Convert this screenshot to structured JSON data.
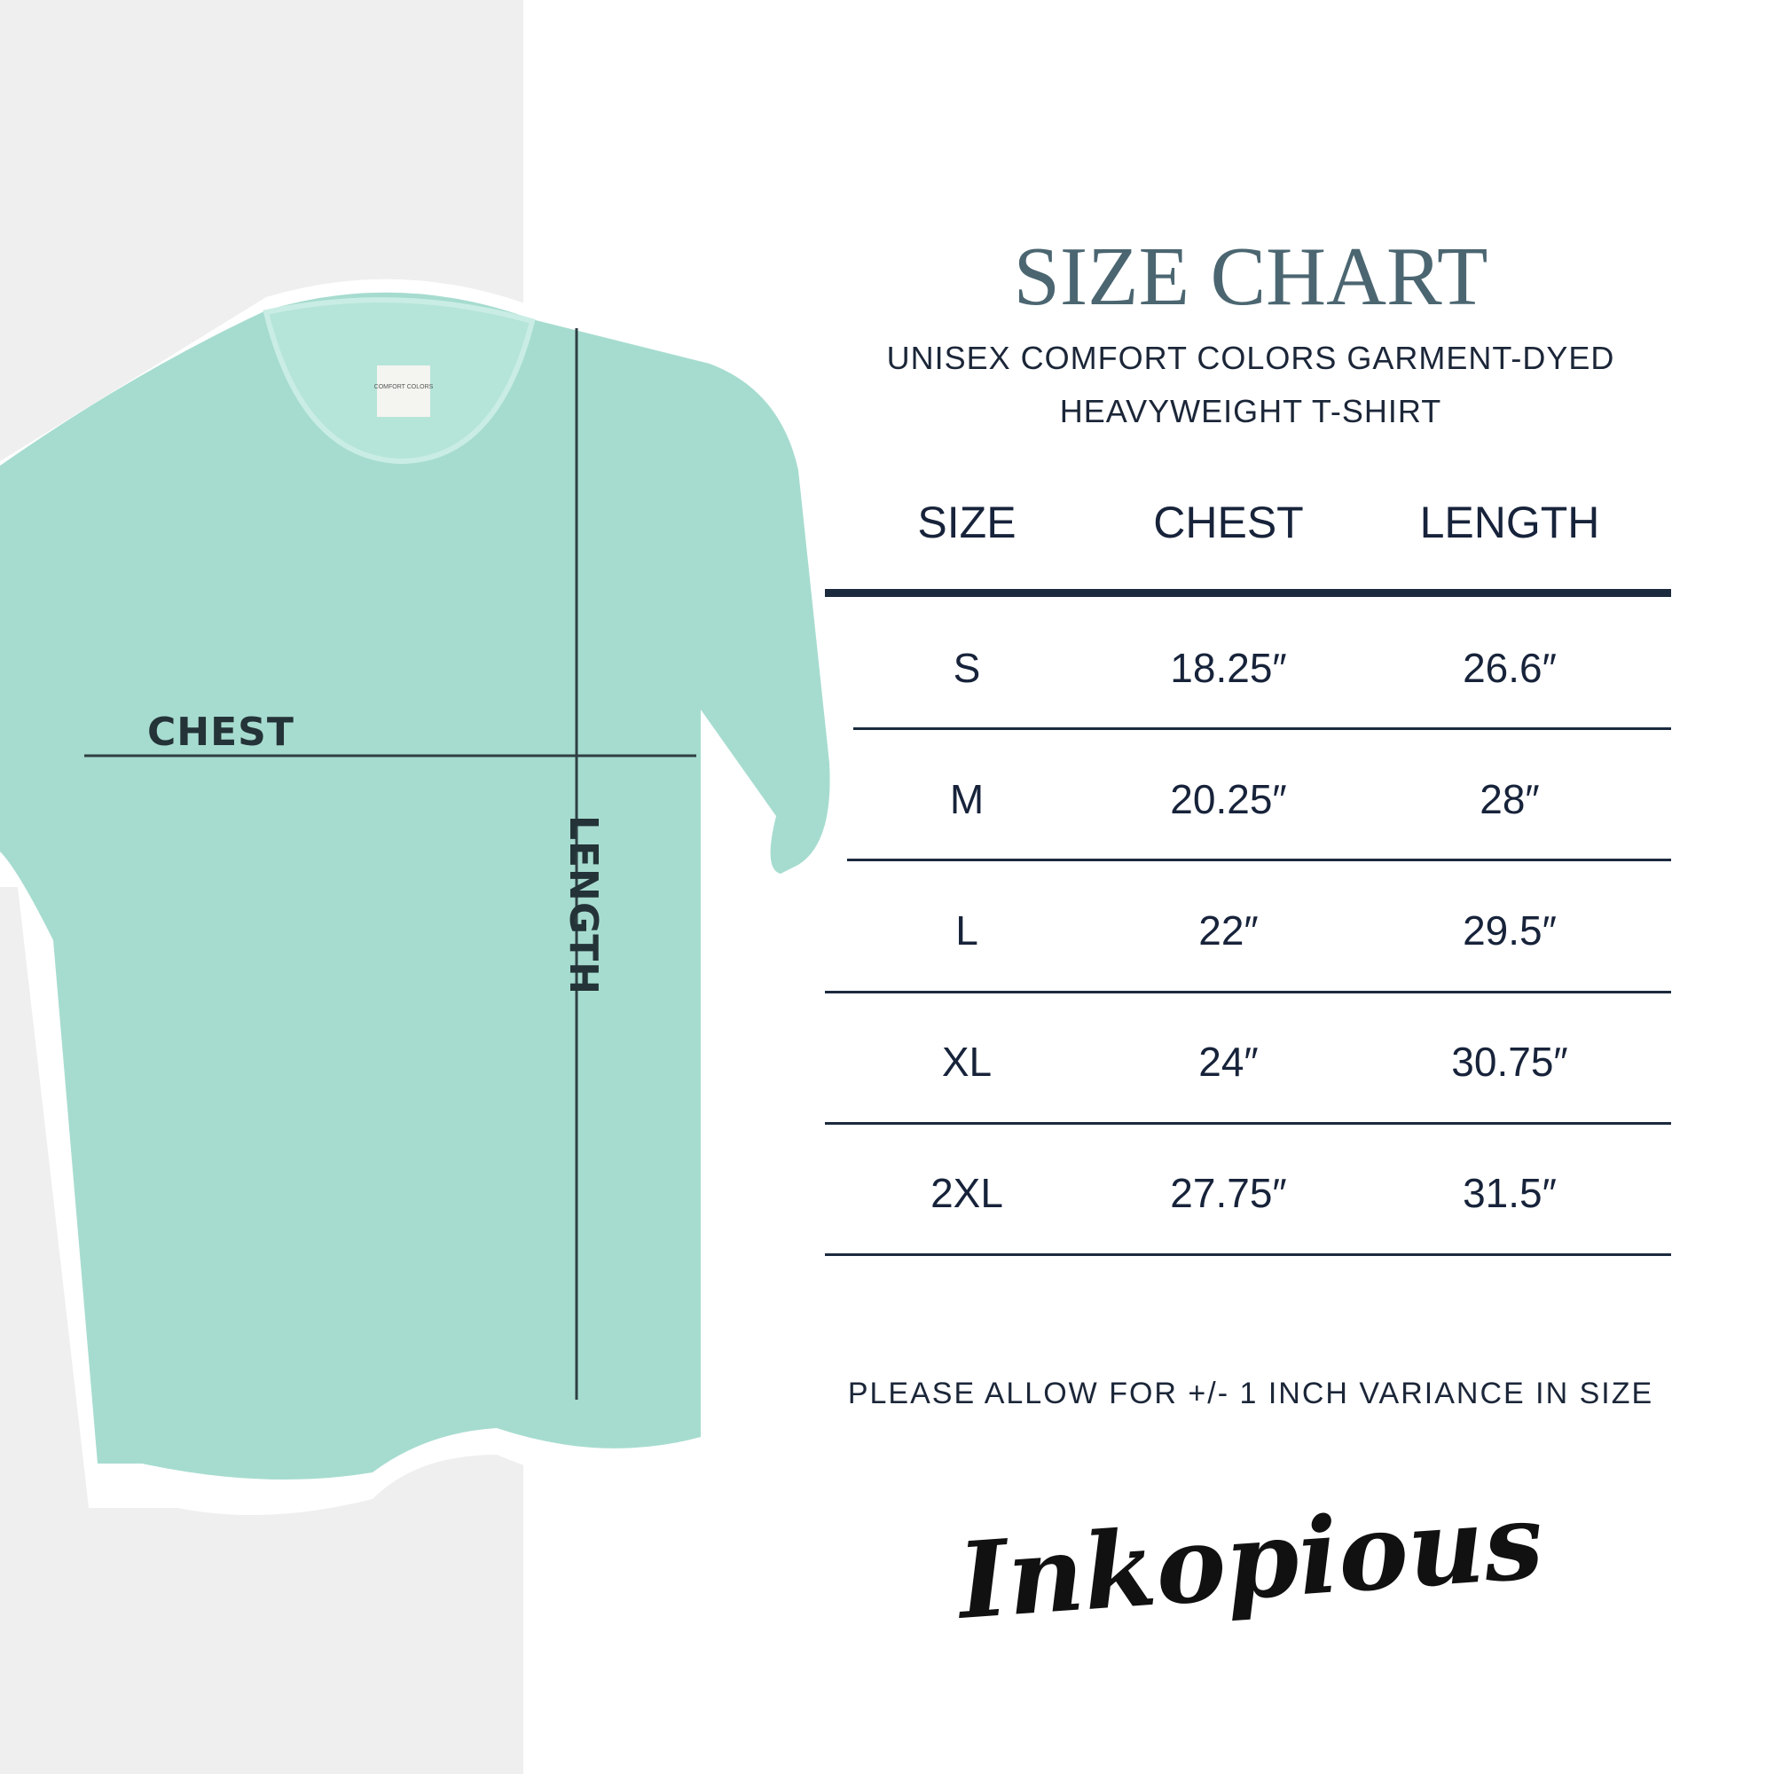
{
  "colors": {
    "shirt": "#a6dccf",
    "panel": "#efefef",
    "title": "#4b6671",
    "text": "#17233a"
  },
  "shirt_labels": {
    "chest": "CHEST",
    "length": "LENGTH",
    "tag": "COMFORT COLORS"
  },
  "header": {
    "title": "SIZE CHART",
    "subtitle_line1": "UNISEX COMFORT COLORS GARMENT-DYED",
    "subtitle_line2": "HEAVYWEIGHT T-SHIRT"
  },
  "table": {
    "columns": [
      "SIZE",
      "CHEST",
      "LENGTH"
    ],
    "rows": [
      {
        "size": "S",
        "chest": "18.25″",
        "length": "26.6″"
      },
      {
        "size": "M",
        "chest": "20.25″",
        "length": "28″"
      },
      {
        "size": "L",
        "chest": "22″",
        "length": "29.5″"
      },
      {
        "size": "XL",
        "chest": "24″",
        "length": "30.75″"
      },
      {
        "size": "2XL",
        "chest": "27.75″",
        "length": "31.5″"
      }
    ]
  },
  "note": "PLEASE ALLOW FOR +/- 1 INCH VARIANCE IN SIZE",
  "brand": "Inkopious"
}
